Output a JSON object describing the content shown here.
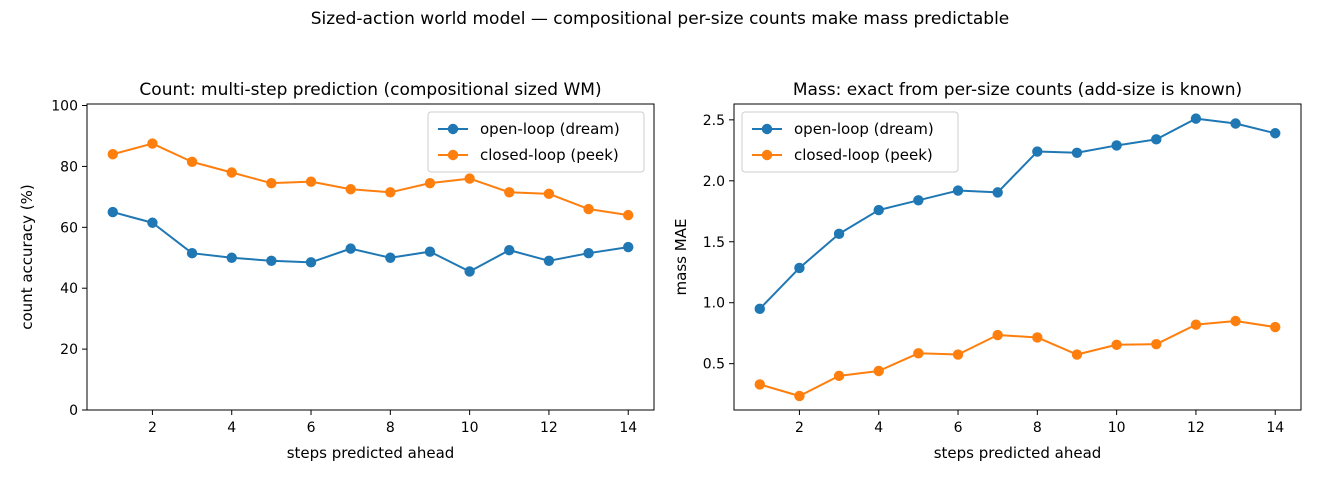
{
  "figure": {
    "suptitle": "Sized-action world model — compositional per-size counts make mass predictable"
  },
  "colors": {
    "open_loop": "#1f77b4",
    "closed_loop": "#ff7f0e",
    "axes": "#000000",
    "background": "#ffffff"
  },
  "chart_data": [
    {
      "type": "line",
      "title": "Count: multi-step prediction (compositional sized WM)",
      "xlabel": "steps predicted ahead",
      "ylabel": "count accuracy (%)",
      "x": [
        1,
        2,
        3,
        4,
        5,
        6,
        7,
        8,
        9,
        10,
        11,
        12,
        13,
        14
      ],
      "xlim": [
        0.35,
        14.65
      ],
      "ylim": [
        0,
        100.5
      ],
      "xticks": [
        2,
        4,
        6,
        8,
        10,
        12,
        14
      ],
      "yticks": [
        0,
        20,
        40,
        60,
        80,
        100
      ],
      "ytick_labels": [
        "0",
        "20",
        "40",
        "60",
        "80",
        "100"
      ],
      "grid": false,
      "legend_position": "upper right",
      "series": [
        {
          "name": "open-loop (dream)",
          "color": "#1f77b4",
          "marker": "circle",
          "values": [
            65.0,
            61.5,
            51.5,
            50.0,
            49.0,
            48.5,
            53.0,
            50.0,
            52.0,
            45.5,
            52.5,
            49.0,
            51.5,
            53.5
          ]
        },
        {
          "name": "closed-loop (peek)",
          "color": "#ff7f0e",
          "marker": "circle",
          "values": [
            84.0,
            87.5,
            81.5,
            78.0,
            74.5,
            75.0,
            72.5,
            71.5,
            74.5,
            76.0,
            71.5,
            71.0,
            66.0,
            64.0
          ]
        }
      ]
    },
    {
      "type": "line",
      "title": "Mass: exact from per-size counts (add-size is known)",
      "xlabel": "steps predicted ahead",
      "ylabel": "mass MAE",
      "x": [
        1,
        2,
        3,
        4,
        5,
        6,
        7,
        8,
        9,
        10,
        11,
        12,
        13,
        14
      ],
      "xlim": [
        0.35,
        14.65
      ],
      "ylim": [
        0.12,
        2.63
      ],
      "xticks": [
        2,
        4,
        6,
        8,
        10,
        12,
        14
      ],
      "yticks": [
        0.5,
        1.0,
        1.5,
        2.0,
        2.5
      ],
      "ytick_labels": [
        "0.5",
        "1.0",
        "1.5",
        "2.0",
        "2.5"
      ],
      "grid": false,
      "legend_position": "upper left",
      "series": [
        {
          "name": "open-loop (dream)",
          "color": "#1f77b4",
          "marker": "circle",
          "values": [
            0.95,
            1.285,
            1.565,
            1.76,
            1.84,
            1.92,
            1.905,
            2.24,
            2.23,
            2.29,
            2.34,
            2.51,
            2.47,
            2.39
          ]
        },
        {
          "name": "closed-loop (peek)",
          "color": "#ff7f0e",
          "marker": "circle",
          "values": [
            0.33,
            0.235,
            0.4,
            0.44,
            0.585,
            0.575,
            0.735,
            0.715,
            0.575,
            0.655,
            0.66,
            0.82,
            0.85,
            0.8
          ]
        }
      ]
    }
  ]
}
